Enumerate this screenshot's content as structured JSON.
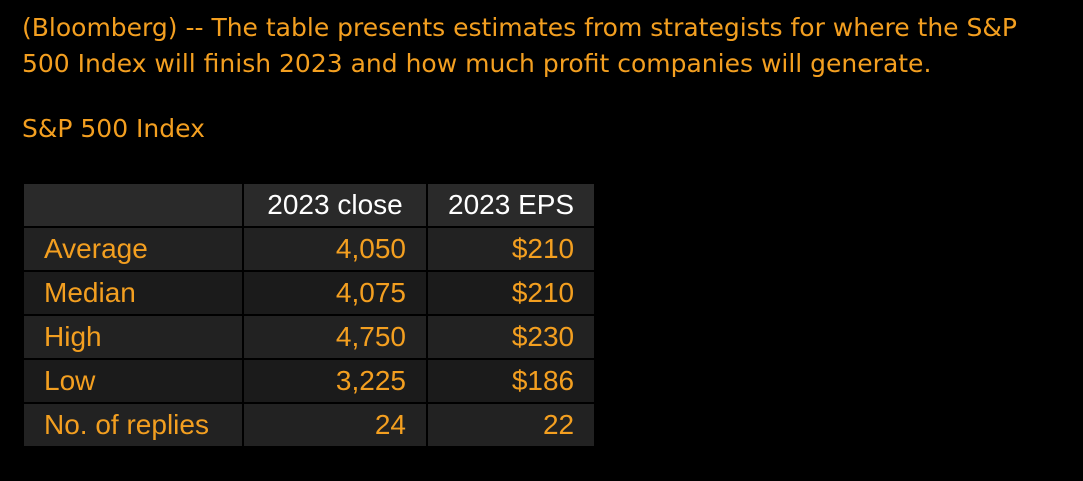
{
  "intro": "(Bloomberg) -- The table presents estimates from strategists for where the S&P 500 Index will finish 2023 and how much profit companies will generate.",
  "subtitle": "S&P 500 Index",
  "table": {
    "columns": [
      "",
      "2023 close",
      "2023 EPS"
    ],
    "rows": [
      {
        "label": "Average",
        "close": "4,050",
        "eps": "$210"
      },
      {
        "label": "Median",
        "close": "4,075",
        "eps": "$210"
      },
      {
        "label": "High",
        "close": "4,750",
        "eps": "$230"
      },
      {
        "label": "Low",
        "close": "3,225",
        "eps": "$186"
      },
      {
        "label": "No. of replies",
        "close": "24",
        "eps": "22"
      }
    ]
  }
}
